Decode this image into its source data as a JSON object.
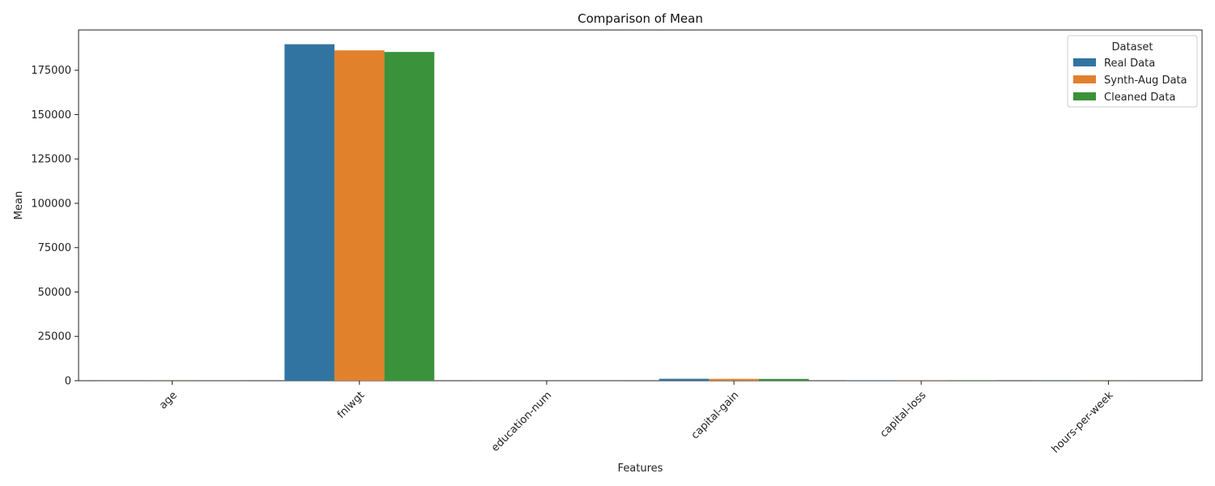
{
  "chart_data": {
    "type": "bar",
    "title": "Comparison of Mean",
    "xlabel": "Features",
    "ylabel": "Mean",
    "categories": [
      "age",
      "fnlwgt",
      "education-num",
      "capital-gain",
      "capital-loss",
      "hours-per-week"
    ],
    "series": [
      {
        "name": "Real Data",
        "color": "#3274a1",
        "values": [
          38.6,
          189664,
          10.1,
          1079,
          87.5,
          40.4
        ]
      },
      {
        "name": "Synth-Aug Data",
        "color": "#e1812c",
        "values": [
          38.4,
          186200,
          10.0,
          1040,
          85.0,
          40.2
        ]
      },
      {
        "name": "Cleaned Data",
        "color": "#3a923a",
        "values": [
          38.5,
          185300,
          10.0,
          1010,
          84.0,
          40.3
        ]
      }
    ],
    "ylim": [
      0,
      197700
    ],
    "yticks": [
      0,
      25000,
      50000,
      75000,
      100000,
      125000,
      150000,
      175000
    ],
    "grid": false,
    "legend": {
      "title": "Dataset",
      "placement": "top-right"
    }
  }
}
